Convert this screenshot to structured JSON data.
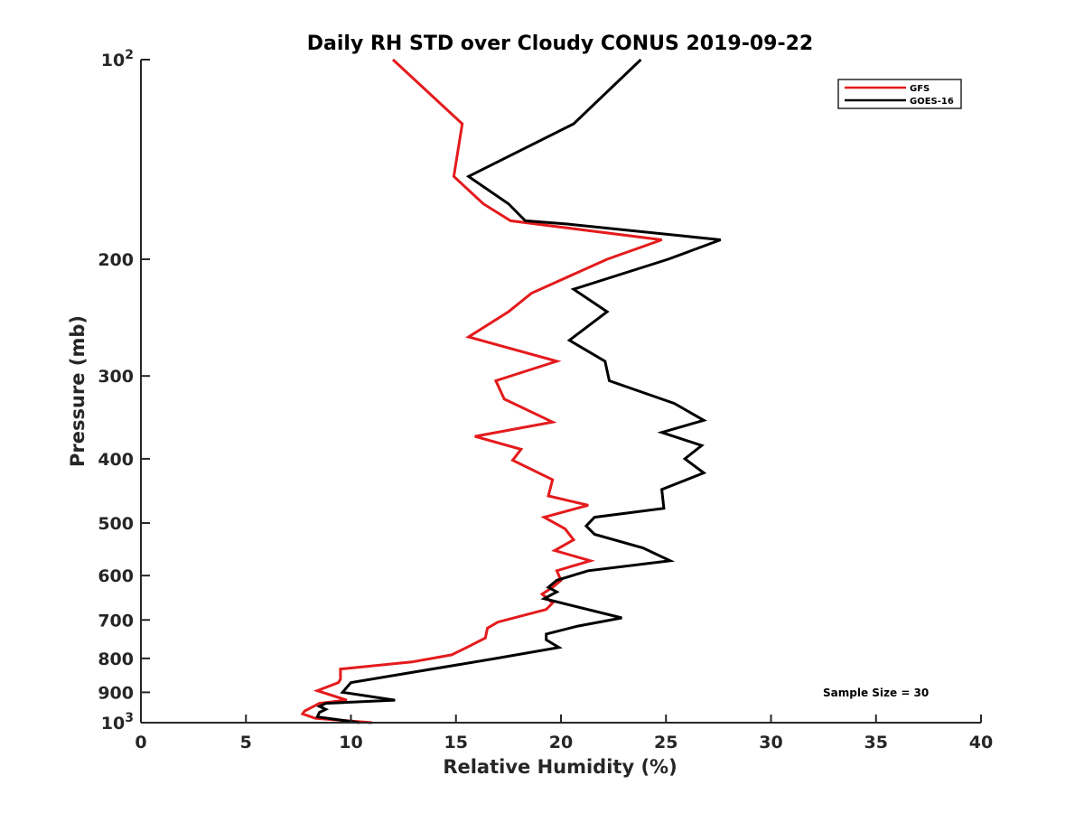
{
  "chart_data": {
    "type": "line",
    "title": "Daily RH STD over Cloudy CONUS 2019-09-22",
    "xlabel": "Relative Humidity (%)",
    "ylabel": "Pressure (mb)",
    "xlim": [
      0,
      40
    ],
    "ylim": [
      100,
      1000
    ],
    "yscale": "log",
    "y_reversed": true,
    "x_ticks": [
      0,
      5,
      10,
      15,
      20,
      25,
      30,
      35,
      40
    ],
    "x_tick_labels": [
      "0",
      "5",
      "10",
      "15",
      "20",
      "25",
      "30",
      "35",
      "40"
    ],
    "y_ticks": [
      100,
      200,
      300,
      400,
      500,
      600,
      700,
      800,
      900,
      1000
    ],
    "y_tick_labels": [
      {
        "base": "10",
        "sup": "2"
      },
      {
        "base": "200",
        "sup": ""
      },
      {
        "base": "300",
        "sup": ""
      },
      {
        "base": "400",
        "sup": ""
      },
      {
        "base": "500",
        "sup": ""
      },
      {
        "base": "600",
        "sup": ""
      },
      {
        "base": "700",
        "sup": ""
      },
      {
        "base": "800",
        "sup": ""
      },
      {
        "base": "900",
        "sup": ""
      },
      {
        "base": "10",
        "sup": "3"
      }
    ],
    "legend_position": "top-right",
    "annotation": "Sample Size = 30",
    "series": [
      {
        "name": "GFS",
        "color": "#e41a1c",
        "points": [
          [
            12.0,
            100
          ],
          [
            15.3,
            125
          ],
          [
            14.9,
            150
          ],
          [
            16.3,
            165
          ],
          [
            17.6,
            175
          ],
          [
            24.8,
            187
          ],
          [
            22.2,
            200
          ],
          [
            18.6,
            225
          ],
          [
            17.5,
            240
          ],
          [
            15.6,
            262
          ],
          [
            19.8,
            285
          ],
          [
            16.9,
            305
          ],
          [
            17.3,
            325
          ],
          [
            19.6,
            352
          ],
          [
            15.9,
            370
          ],
          [
            18.1,
            387
          ],
          [
            17.7,
            402
          ],
          [
            19.6,
            430
          ],
          [
            19.4,
            455
          ],
          [
            21.3,
            470
          ],
          [
            19.2,
            490
          ],
          [
            20.2,
            510
          ],
          [
            20.6,
            530
          ],
          [
            19.7,
            550
          ],
          [
            21.4,
            570
          ],
          [
            19.8,
            590
          ],
          [
            20.0,
            610
          ],
          [
            19.6,
            625
          ],
          [
            19.1,
            640
          ],
          [
            19.6,
            660
          ],
          [
            19.3,
            675
          ],
          [
            17.0,
            705
          ],
          [
            16.5,
            720
          ],
          [
            16.4,
            745
          ],
          [
            15.7,
            765
          ],
          [
            14.8,
            790
          ],
          [
            12.9,
            810
          ],
          [
            9.5,
            830
          ],
          [
            9.5,
            860
          ],
          [
            9.4,
            870
          ],
          [
            8.4,
            895
          ],
          [
            9.8,
            925
          ],
          [
            8.5,
            935
          ],
          [
            7.8,
            960
          ],
          [
            7.7,
            970
          ],
          [
            8.3,
            985
          ],
          [
            11.0,
            1000
          ]
        ]
      },
      {
        "name": "GOES-16",
        "color": "#000000",
        "points": [
          [
            23.8,
            100
          ],
          [
            20.6,
            125
          ],
          [
            15.6,
            150
          ],
          [
            17.5,
            165
          ],
          [
            18.3,
            175
          ],
          [
            20.3,
            177
          ],
          [
            27.6,
            187
          ],
          [
            25.1,
            200
          ],
          [
            20.6,
            222
          ],
          [
            22.2,
            240
          ],
          [
            20.4,
            265
          ],
          [
            22.1,
            285
          ],
          [
            22.3,
            305
          ],
          [
            25.4,
            330
          ],
          [
            26.8,
            350
          ],
          [
            24.8,
            365
          ],
          [
            26.7,
            382
          ],
          [
            25.9,
            400
          ],
          [
            26.8,
            420
          ],
          [
            24.8,
            445
          ],
          [
            24.9,
            475
          ],
          [
            21.6,
            490
          ],
          [
            21.2,
            505
          ],
          [
            21.6,
            520
          ],
          [
            23.9,
            545
          ],
          [
            25.2,
            570
          ],
          [
            21.3,
            590
          ],
          [
            19.8,
            610
          ],
          [
            19.4,
            625
          ],
          [
            19.8,
            635
          ],
          [
            19.2,
            650
          ],
          [
            22.9,
            695
          ],
          [
            20.8,
            715
          ],
          [
            19.3,
            735
          ],
          [
            19.3,
            750
          ],
          [
            19.9,
            770
          ],
          [
            16.9,
            800
          ],
          [
            12.9,
            840
          ],
          [
            10.0,
            870
          ],
          [
            9.6,
            900
          ],
          [
            12.1,
            925
          ],
          [
            8.8,
            935
          ],
          [
            8.5,
            945
          ],
          [
            8.8,
            955
          ],
          [
            8.5,
            965
          ],
          [
            8.4,
            980
          ],
          [
            10.4,
            1000
          ]
        ]
      }
    ]
  }
}
